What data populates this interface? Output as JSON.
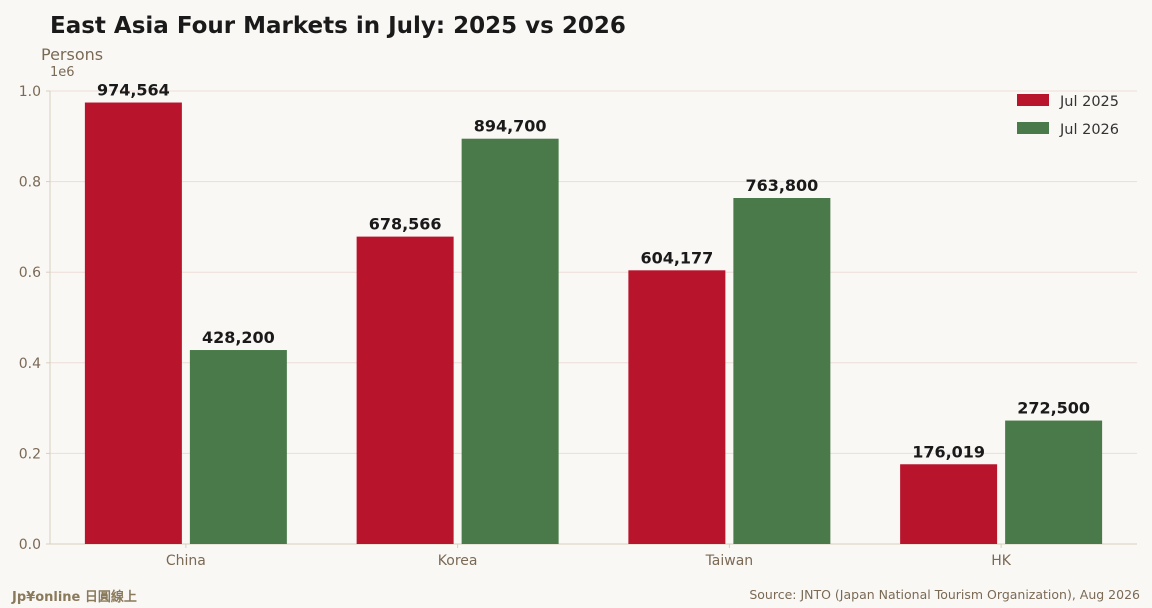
{
  "chart_data": {
    "type": "bar",
    "title": "East Asia Four Markets in July: 2025 vs 2026",
    "ylabel": "Persons",
    "y_multiplier_label": "1e6",
    "xlabel": "",
    "categories": [
      "China",
      "Korea",
      "Taiwan",
      "HK"
    ],
    "series": [
      {
        "name": "Jul 2025",
        "values": [
          974564,
          678566,
          604177,
          176019
        ],
        "labels": [
          "974,564",
          "678,566",
          "604,177",
          "176,019"
        ],
        "color": "#b8142c"
      },
      {
        "name": "Jul 2026",
        "values": [
          428200,
          894700,
          763800,
          272500
        ],
        "labels": [
          "428,200",
          "894,700",
          "763,800",
          "272,500"
        ],
        "color": "#4a7a4a"
      }
    ],
    "ylim": [
      0,
      1000000
    ],
    "yticks": [
      0,
      200000,
      400000,
      600000,
      800000,
      1000000
    ],
    "ytick_labels": [
      "0.0",
      "0.2",
      "0.4",
      "0.6",
      "0.8",
      "1.0"
    ],
    "grid": "horizontal",
    "legend_position": "top-right"
  },
  "footer": {
    "brand": "Jp¥online 日圓線上",
    "source": "Source: JNTO (Japan National Tourism Organization), Aug 2026"
  },
  "colors": {
    "background": "#faf8f5",
    "axis_text": "#7a6a55",
    "grid": "#eedcd6",
    "spine": "#d8cfc0",
    "title": "#1a1a1a"
  }
}
